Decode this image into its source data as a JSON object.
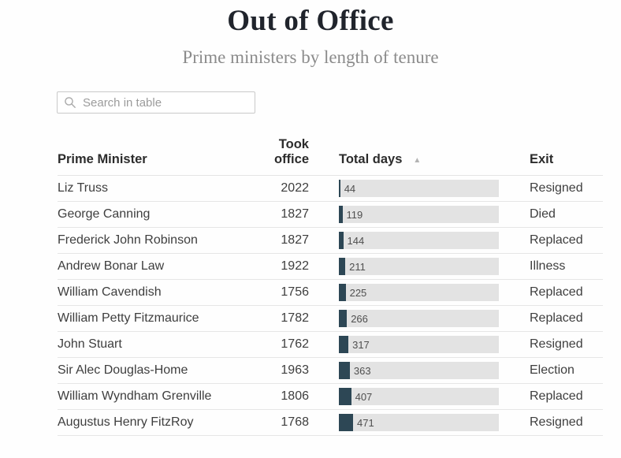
{
  "header": {
    "title": "Out of Office",
    "subtitle": "Prime ministers by length of tenure"
  },
  "search": {
    "placeholder": "Search in table",
    "value": ""
  },
  "icons": {
    "search": "magnifying-glass",
    "sort_ascending": "▲"
  },
  "colors": {
    "title_text": "#20242c",
    "subtitle_text": "#8b8b8b",
    "bar_fill": "#2d4755",
    "bar_track": "#e3e3e3",
    "row_divider": "#e6e6e6"
  },
  "table": {
    "columns": [
      {
        "label": "Prime Minister"
      },
      {
        "label": "Took office"
      },
      {
        "label": "Total days"
      },
      {
        "label": "Exit"
      }
    ],
    "sort_indicator": {
      "column": "Total days",
      "direction": "ascending"
    },
    "rows": [
      {
        "prime_minister": "Liz Truss",
        "took_office": "2022",
        "total_days": 44,
        "exit": "Resigned"
      },
      {
        "prime_minister": "George Canning",
        "took_office": "1827",
        "total_days": 119,
        "exit": "Died"
      },
      {
        "prime_minister": "Frederick John Robinson",
        "took_office": "1827",
        "total_days": 144,
        "exit": "Replaced"
      },
      {
        "prime_minister": "Andrew Bonar Law",
        "took_office": "1922",
        "total_days": 211,
        "exit": "Illness"
      },
      {
        "prime_minister": "William Cavendish",
        "took_office": "1756",
        "total_days": 225,
        "exit": "Replaced"
      },
      {
        "prime_minister": "William Petty Fitzmaurice",
        "took_office": "1782",
        "total_days": 266,
        "exit": "Replaced"
      },
      {
        "prime_minister": "John Stuart",
        "took_office": "1762",
        "total_days": 317,
        "exit": "Resigned"
      },
      {
        "prime_minister": "Sir Alec Douglas-Home",
        "took_office": "1963",
        "total_days": 363,
        "exit": "Election"
      },
      {
        "prime_minister": "William Wyndham Grenville",
        "took_office": "1806",
        "total_days": 407,
        "exit": "Replaced"
      },
      {
        "prime_minister": "Augustus Henry FitzRoy",
        "took_office": "1768",
        "total_days": 471,
        "exit": "Resigned"
      }
    ]
  },
  "chart_data": {
    "type": "bar",
    "title": "Out of Office",
    "subtitle": "Prime ministers by length of tenure",
    "categories": [
      "Liz Truss",
      "George Canning",
      "Frederick John Robinson",
      "Andrew Bonar Law",
      "William Cavendish",
      "William Petty Fitzmaurice",
      "John Stuart",
      "Sir Alec Douglas-Home",
      "William Wyndham Grenville",
      "Augustus Henry FitzRoy"
    ],
    "values": [
      44,
      119,
      144,
      211,
      225,
      266,
      317,
      363,
      407,
      471
    ],
    "xlabel": "Total days",
    "ylabel": "Prime Minister",
    "xlim": [
      0,
      5312
    ],
    "orientation": "horizontal",
    "sorted": "ascending"
  }
}
